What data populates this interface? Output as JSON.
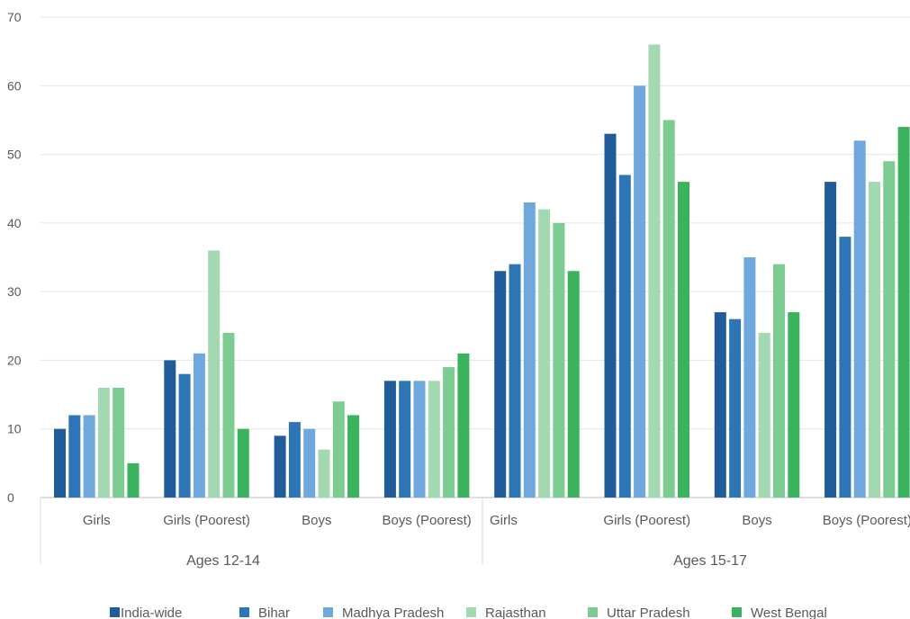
{
  "chart_data": {
    "type": "bar",
    "title": "",
    "xlabel": "",
    "ylabel": "",
    "ylim": [
      0,
      70
    ],
    "yticks": [
      0,
      10,
      20,
      30,
      40,
      50,
      60,
      70
    ],
    "grid": true,
    "legend_position": "bottom",
    "groups": [
      {
        "label": "Ages 12-14",
        "categories": [
          "Girls",
          "Girls (Poorest)",
          "Boys",
          "Boys (Poorest)"
        ]
      },
      {
        "label": "Ages 15-17",
        "categories": [
          "Girls",
          "Girls (Poorest)",
          "Boys",
          "Boys (Poorest)"
        ]
      }
    ],
    "series": [
      {
        "name": "India-wide",
        "color": "#1f5c99",
        "values": [
          10,
          20,
          9,
          17,
          33,
          53,
          27,
          46
        ]
      },
      {
        "name": "Bihar",
        "color": "#2e75b6",
        "values": [
          12,
          18,
          11,
          17,
          34,
          47,
          26,
          38
        ]
      },
      {
        "name": "Madhya Pradesh",
        "color": "#6fa8dc",
        "values": [
          12,
          21,
          10,
          17,
          43,
          60,
          35,
          52
        ]
      },
      {
        "name": "Rajasthan",
        "color": "#a3d9b1",
        "values": [
          16,
          36,
          7,
          17,
          42,
          66,
          24,
          46
        ]
      },
      {
        "name": "Uttar Pradesh",
        "color": "#7ccc92",
        "values": [
          16,
          24,
          14,
          19,
          40,
          55,
          34,
          49
        ]
      },
      {
        "name": "West Bengal",
        "color": "#3bb35e",
        "values": [
          5,
          10,
          12,
          21,
          33,
          46,
          27,
          54
        ]
      }
    ]
  }
}
